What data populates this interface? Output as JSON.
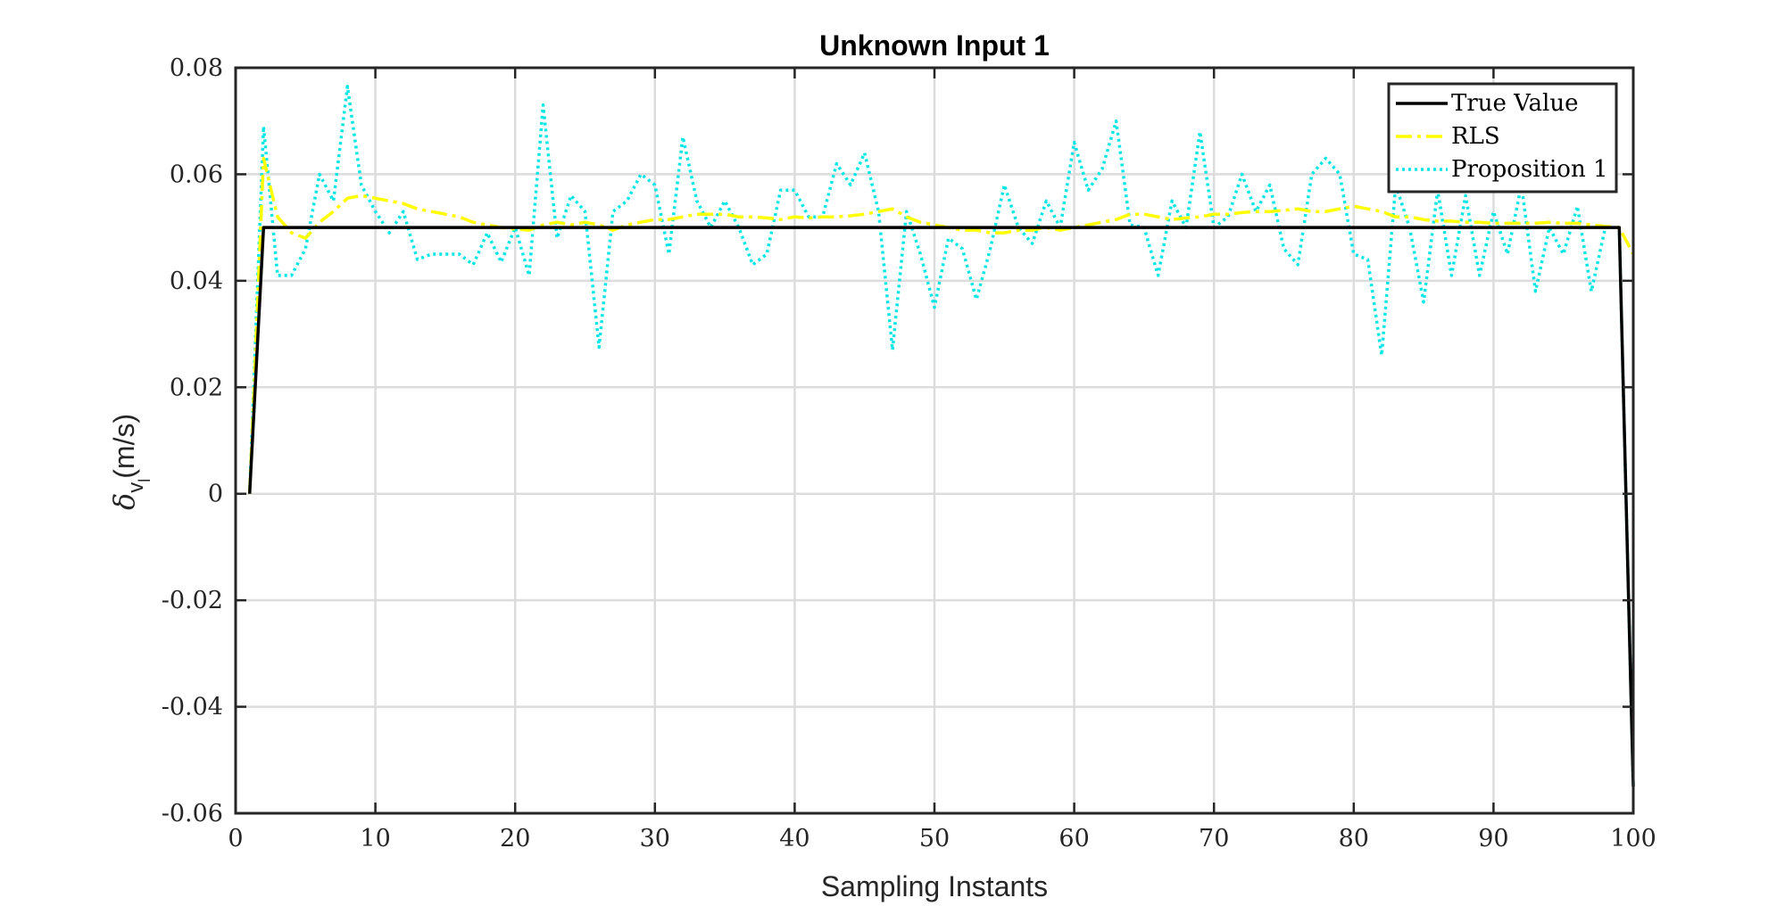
{
  "chart_data": {
    "type": "line",
    "title": "Unknown Input 1",
    "xlabel": "Sampling Instants",
    "ylabel_symbol": "δ",
    "ylabel_sub": "v",
    "ylabel_subsub": "l",
    "ylabel_unit": "(m/s)",
    "xlim": [
      0,
      100
    ],
    "ylim": [
      -0.06,
      0.08
    ],
    "xticks": [
      0,
      10,
      20,
      30,
      40,
      50,
      60,
      70,
      80,
      90,
      100
    ],
    "xtick_labels": [
      "0",
      "10",
      "20",
      "30",
      "40",
      "50",
      "60",
      "70",
      "80",
      "90",
      "100"
    ],
    "yticks": [
      -0.06,
      -0.04,
      -0.02,
      0,
      0.02,
      0.04,
      0.06,
      0.08
    ],
    "ytick_labels": [
      "-0.06",
      "-0.04",
      "-0.02",
      "0",
      "0.02",
      "0.04",
      "0.06",
      "0.08"
    ],
    "grid": true,
    "legend_position": "top-right",
    "series": [
      {
        "name": "True Value",
        "color": "#000000",
        "style": "solid",
        "x": [
          1,
          2,
          99,
          100
        ],
        "y": [
          0,
          0.05,
          0.05,
          -0.055
        ]
      },
      {
        "name": "RLS",
        "color": "#ffff00",
        "style": "dashdot",
        "x": [
          1,
          2,
          3,
          4,
          5,
          6,
          7,
          8,
          9,
          10,
          11,
          12,
          13,
          14,
          15,
          16,
          17,
          18,
          19,
          20,
          21,
          22,
          23,
          24,
          25,
          26,
          27,
          28,
          29,
          30,
          31,
          32,
          33,
          34,
          35,
          36,
          37,
          38,
          39,
          40,
          41,
          42,
          43,
          44,
          45,
          46,
          47,
          48,
          49,
          50,
          51,
          52,
          53,
          54,
          55,
          56,
          57,
          58,
          59,
          60,
          61,
          62,
          63,
          64,
          65,
          66,
          67,
          68,
          69,
          70,
          71,
          72,
          73,
          74,
          75,
          76,
          77,
          78,
          79,
          80,
          81,
          82,
          83,
          84,
          85,
          86,
          87,
          88,
          89,
          90,
          91,
          92,
          93,
          94,
          95,
          96,
          97,
          98,
          99,
          100
        ],
        "y": [
          0,
          0.063,
          0.052,
          0.049,
          0.048,
          0.051,
          0.053,
          0.0555,
          0.056,
          0.0555,
          0.055,
          0.0545,
          0.0535,
          0.053,
          0.0525,
          0.052,
          0.051,
          0.0505,
          0.05,
          0.0497,
          0.0495,
          0.0505,
          0.051,
          0.0505,
          0.051,
          0.0505,
          0.0495,
          0.0505,
          0.051,
          0.0515,
          0.0515,
          0.052,
          0.0525,
          0.0525,
          0.0525,
          0.052,
          0.052,
          0.0518,
          0.0515,
          0.052,
          0.0518,
          0.052,
          0.052,
          0.0522,
          0.0525,
          0.053,
          0.0535,
          0.052,
          0.051,
          0.0505,
          0.05,
          0.0495,
          0.0495,
          0.049,
          0.049,
          0.0495,
          0.0495,
          0.05,
          0.0495,
          0.05,
          0.0505,
          0.051,
          0.0515,
          0.0525,
          0.0525,
          0.052,
          0.0515,
          0.0518,
          0.052,
          0.0525,
          0.0525,
          0.0528,
          0.053,
          0.053,
          0.0532,
          0.0535,
          0.053,
          0.053,
          0.0535,
          0.054,
          0.0535,
          0.053,
          0.052,
          0.052,
          0.0515,
          0.0512,
          0.0512,
          0.051,
          0.051,
          0.0508,
          0.0508,
          0.0508,
          0.0508,
          0.051,
          0.0508,
          0.0508,
          0.0505,
          0.0502,
          0.05,
          0.045
        ]
      },
      {
        "name": "Proposition 1",
        "color": "#00e6e6",
        "style": "dotted",
        "x": [
          1,
          2,
          3,
          4,
          5,
          6,
          7,
          8,
          9,
          10,
          11,
          12,
          13,
          14,
          15,
          16,
          17,
          18,
          19,
          20,
          21,
          22,
          23,
          24,
          25,
          26,
          27,
          28,
          29,
          30,
          31,
          32,
          33,
          34,
          35,
          36,
          37,
          38,
          39,
          40,
          41,
          42,
          43,
          44,
          45,
          46,
          47,
          48,
          49,
          50,
          51,
          52,
          53,
          54,
          55,
          56,
          57,
          58,
          59,
          60,
          61,
          62,
          63,
          64,
          65,
          66,
          67,
          68,
          69,
          70,
          71,
          72,
          73,
          74,
          75,
          76,
          77,
          78,
          79,
          80,
          81,
          82,
          83,
          84,
          85,
          86,
          87,
          88,
          89,
          90,
          91,
          92,
          93,
          94,
          95,
          96,
          97,
          98,
          99,
          100
        ],
        "y": [
          0,
          0.069,
          0.041,
          0.041,
          0.046,
          0.06,
          0.055,
          0.0765,
          0.058,
          0.053,
          0.049,
          0.053,
          0.044,
          0.045,
          0.045,
          0.045,
          0.043,
          0.049,
          0.0435,
          0.05,
          0.041,
          0.073,
          0.048,
          0.056,
          0.053,
          0.0275,
          0.053,
          0.055,
          0.06,
          0.058,
          0.045,
          0.067,
          0.055,
          0.05,
          0.055,
          0.05,
          0.043,
          0.045,
          0.057,
          0.057,
          0.052,
          0.052,
          0.062,
          0.058,
          0.064,
          0.053,
          0.027,
          0.053,
          0.045,
          0.035,
          0.048,
          0.046,
          0.0365,
          0.046,
          0.058,
          0.05,
          0.047,
          0.055,
          0.05,
          0.066,
          0.057,
          0.061,
          0.07,
          0.0505,
          0.05,
          0.041,
          0.055,
          0.05,
          0.068,
          0.05,
          0.052,
          0.06,
          0.053,
          0.058,
          0.046,
          0.043,
          0.06,
          0.063,
          0.06,
          0.045,
          0.044,
          0.026,
          0.058,
          0.05,
          0.036,
          0.057,
          0.041,
          0.056,
          0.041,
          0.053,
          0.045,
          0.058,
          0.038,
          0.05,
          0.045,
          0.054,
          0.038,
          0.05,
          0.05,
          -0.055
        ]
      }
    ]
  }
}
